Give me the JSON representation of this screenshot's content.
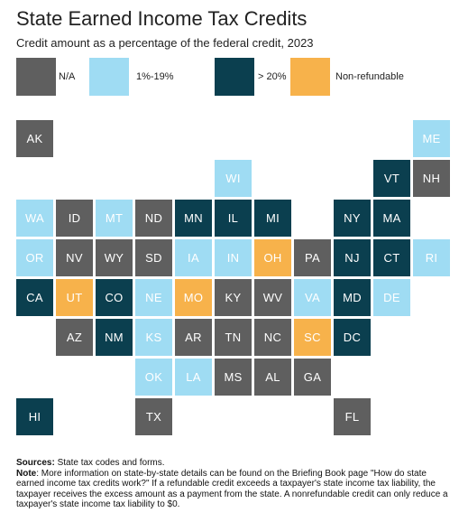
{
  "title": "State Earned Income Tax Credits",
  "subtitle": "Credit amount as a percentage of the federal credit, 2023",
  "colors": {
    "na": "#5f5f5f",
    "low": "#9fdcf3",
    "high": "#0b3f4f",
    "nonrefundable": "#f7b24b"
  },
  "legend": {
    "na": "N/A",
    "low": "1%-19%",
    "high": "> 20%",
    "nonrefundable": "Non-refundable"
  },
  "states": [
    {
      "abbr": "AK",
      "category": "na"
    },
    {
      "abbr": "ME",
      "category": "low"
    },
    {
      "abbr": "WI",
      "category": "low"
    },
    {
      "abbr": "VT",
      "category": "high"
    },
    {
      "abbr": "NH",
      "category": "na"
    },
    {
      "abbr": "WA",
      "category": "low"
    },
    {
      "abbr": "ID",
      "category": "na"
    },
    {
      "abbr": "MT",
      "category": "low"
    },
    {
      "abbr": "ND",
      "category": "na"
    },
    {
      "abbr": "MN",
      "category": "high"
    },
    {
      "abbr": "IL",
      "category": "high"
    },
    {
      "abbr": "MI",
      "category": "high"
    },
    {
      "abbr": "NY",
      "category": "high"
    },
    {
      "abbr": "MA",
      "category": "high"
    },
    {
      "abbr": "OR",
      "category": "low"
    },
    {
      "abbr": "NV",
      "category": "na"
    },
    {
      "abbr": "WY",
      "category": "na"
    },
    {
      "abbr": "SD",
      "category": "na"
    },
    {
      "abbr": "IA",
      "category": "low"
    },
    {
      "abbr": "IN",
      "category": "low"
    },
    {
      "abbr": "OH",
      "category": "nonrefundable"
    },
    {
      "abbr": "PA",
      "category": "na"
    },
    {
      "abbr": "NJ",
      "category": "high"
    },
    {
      "abbr": "CT",
      "category": "high"
    },
    {
      "abbr": "RI",
      "category": "low"
    },
    {
      "abbr": "CA",
      "category": "high"
    },
    {
      "abbr": "UT",
      "category": "nonrefundable"
    },
    {
      "abbr": "CO",
      "category": "high"
    },
    {
      "abbr": "NE",
      "category": "low"
    },
    {
      "abbr": "MO",
      "category": "nonrefundable"
    },
    {
      "abbr": "KY",
      "category": "na"
    },
    {
      "abbr": "WV",
      "category": "na"
    },
    {
      "abbr": "VA",
      "category": "low"
    },
    {
      "abbr": "MD",
      "category": "high"
    },
    {
      "abbr": "DE",
      "category": "low"
    },
    {
      "abbr": "AZ",
      "category": "na"
    },
    {
      "abbr": "NM",
      "category": "high"
    },
    {
      "abbr": "KS",
      "category": "low"
    },
    {
      "abbr": "AR",
      "category": "na"
    },
    {
      "abbr": "TN",
      "category": "na"
    },
    {
      "abbr": "NC",
      "category": "na"
    },
    {
      "abbr": "SC",
      "category": "nonrefundable"
    },
    {
      "abbr": "DC",
      "category": "high"
    },
    {
      "abbr": "OK",
      "category": "low"
    },
    {
      "abbr": "LA",
      "category": "low"
    },
    {
      "abbr": "MS",
      "category": "na"
    },
    {
      "abbr": "AL",
      "category": "na"
    },
    {
      "abbr": "GA",
      "category": "na"
    },
    {
      "abbr": "HI",
      "category": "high"
    },
    {
      "abbr": "TX",
      "category": "na"
    },
    {
      "abbr": "FL",
      "category": "na"
    }
  ],
  "notes": {
    "sources_label": "Sources:",
    "sources_text": " State tax codes and forms.",
    "note_label": "Note",
    "note_text": ": More information on state-by-state details can be found on the Briefing Book page \"How do state earned income tax credits work?\" If a refundable credit exceeds a taxpayer's state income tax liability, the taxpayer receives the excess amount as a payment from the state. A nonrefundable credit can only reduce a taxpayer's state income tax liability to $0."
  }
}
